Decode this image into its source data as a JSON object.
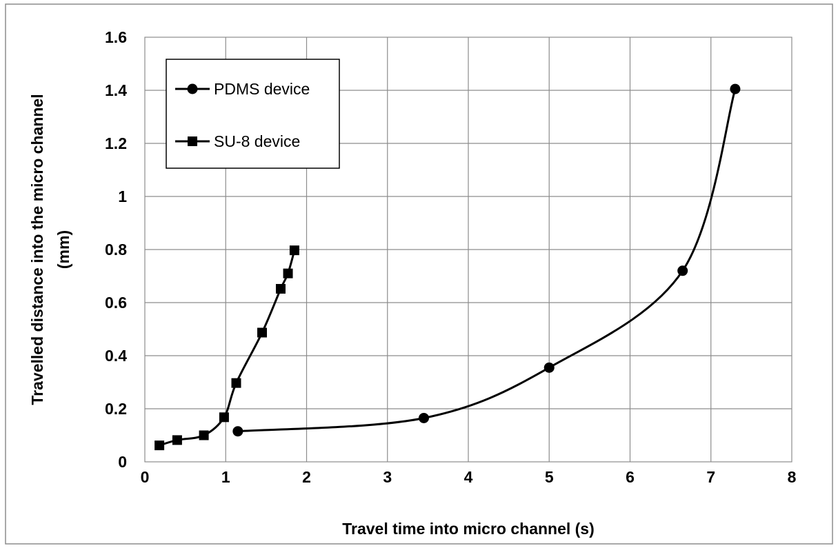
{
  "chart_data": {
    "type": "line",
    "xlabel": "Travel time into micro channel (s)",
    "ylabel_line1": "Travelled distance into the  micro channel",
    "ylabel_line2": "(mm)",
    "xlim": [
      0,
      8
    ],
    "ylim": [
      0,
      1.6
    ],
    "xticks": [
      0,
      1,
      2,
      3,
      4,
      5,
      6,
      7,
      8
    ],
    "xtick_labels": [
      "0",
      "1",
      "2",
      "3",
      "4",
      "5",
      "6",
      "7",
      "8"
    ],
    "yticks": [
      0,
      0.2,
      0.4,
      0.6,
      0.8,
      1,
      1.2,
      1.4,
      1.6
    ],
    "ytick_labels": [
      "0",
      "0.2",
      "0.4",
      "0.6",
      "0.8",
      "1",
      "1.2",
      "1.4",
      "1.6"
    ],
    "grid": true,
    "legend_position": "top-left",
    "series": [
      {
        "name": "PDMS device",
        "marker": "circle",
        "smooth": true,
        "color": "#000000",
        "x": [
          1.15,
          3.45,
          5.0,
          6.65,
          7.3
        ],
        "y": [
          0.115,
          0.165,
          0.355,
          0.72,
          1.405
        ]
      },
      {
        "name": "SU-8 device",
        "marker": "square",
        "smooth": true,
        "color": "#000000",
        "x": [
          0.18,
          0.4,
          0.73,
          0.98,
          1.13,
          1.45,
          1.68,
          1.77,
          1.85
        ],
        "y": [
          0.062,
          0.082,
          0.1,
          0.168,
          0.297,
          0.487,
          0.652,
          0.71,
          0.797
        ]
      }
    ]
  }
}
